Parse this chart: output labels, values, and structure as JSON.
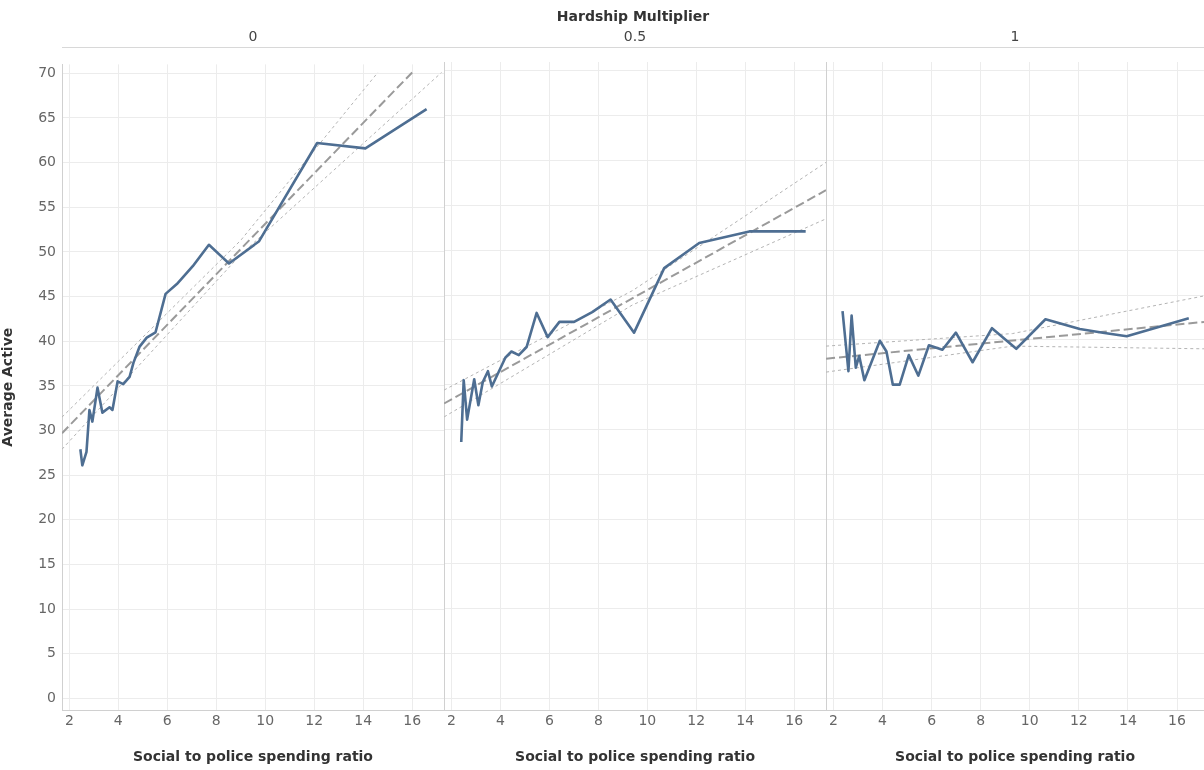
{
  "chart_data": [
    {
      "type": "line",
      "title": "0",
      "annotations": [
        "Hardship Multiplier"
      ],
      "xlabel": "Social to police spending ratio",
      "ylabel": "Average Active",
      "xlim": [
        1.7,
        17.3
      ],
      "xticks": [
        2,
        4,
        6,
        8,
        10,
        12,
        14,
        16
      ],
      "ylim": [
        -1.3,
        71
      ],
      "yticks": [
        0,
        5,
        10,
        15,
        20,
        25,
        30,
        35,
        40,
        45,
        50,
        55,
        60,
        65,
        70
      ],
      "grid": true,
      "legend": false,
      "marker": "none",
      "series": [
        {
          "color": "#4e6e92",
          "line_style": "solid",
          "x": [
            2.45,
            2.53,
            2.7,
            2.82,
            2.94,
            3.15,
            3.35,
            3.64,
            3.76,
            3.97,
            4.2,
            4.46,
            4.62,
            4.87,
            5.16,
            5.52,
            5.93,
            6.39,
            7.04,
            7.7,
            8.52,
            9.75,
            12.12,
            14.09,
            16.59
          ],
          "values": [
            27.9,
            26.1,
            27.6,
            32.3,
            31,
            34.8,
            32,
            32.6,
            32.3,
            35.5,
            35.2,
            36,
            37.6,
            39.4,
            40.4,
            41,
            45.3,
            46.4,
            48.4,
            50.8,
            48.7,
            51.2,
            62.2,
            61.6,
            66
          ]
        },
        {
          "type": "line",
          "color": "#9a9a9a",
          "line_style": "dashed",
          "x": [
            1.7,
            16
          ],
          "values": [
            29.7,
            70.1
          ]
        },
        {
          "type": "line",
          "color": "#b4b4b4",
          "line_style": "dotted",
          "x": [
            1.7,
            9,
            14.6
          ],
          "values": [
            31.5,
            51.3,
            70.1
          ]
        },
        {
          "type": "line",
          "color": "#b4b4b4",
          "line_style": "dotted",
          "x": [
            1.7,
            9,
            17.2
          ],
          "values": [
            27.9,
            49.7,
            70.1
          ]
        }
      ]
    },
    {
      "type": "line",
      "title": "0.5",
      "xlabel": "Social to police spending ratio",
      "xlim": [
        1.7,
        17.3
      ],
      "xticks": [
        2,
        4,
        6,
        8,
        10,
        12,
        14,
        16
      ],
      "ylim": [
        -1.3,
        71
      ],
      "yticks": [
        0,
        5,
        10,
        15,
        20,
        25,
        30,
        35,
        40,
        45,
        50,
        55,
        60,
        65,
        70
      ],
      "tick_labels": "x",
      "grid": true,
      "legend": false,
      "marker": "none",
      "series": [
        {
          "color": "#4e6e92",
          "line_style": "solid",
          "x": [
            2.4,
            2.5,
            2.64,
            2.93,
            3.1,
            3.28,
            3.49,
            3.65,
            4.2,
            4.45,
            4.75,
            5.07,
            5.48,
            5.93,
            6.41,
            7.01,
            7.75,
            8.5,
            9.46,
            10.69,
            12.12,
            14.17,
            16.47
          ],
          "values": [
            28.6,
            35.5,
            31.1,
            35.6,
            32.7,
            35.3,
            36.5,
            34.8,
            38,
            38.7,
            38.3,
            39.2,
            43,
            40.3,
            42,
            42,
            43.1,
            44.5,
            40.8,
            48,
            50.8,
            52.1,
            52.1
          ]
        },
        {
          "type": "line",
          "color": "#9a9a9a",
          "line_style": "dashed",
          "x": [
            1.7,
            17.3
          ],
          "values": [
            32.9,
            56.7
          ]
        },
        {
          "type": "line",
          "color": "#b4b4b4",
          "line_style": "dotted",
          "x": [
            1.7,
            9.4,
            17.3
          ],
          "values": [
            34.4,
            45.5,
            59.8
          ]
        },
        {
          "type": "line",
          "color": "#b4b4b4",
          "line_style": "dotted",
          "x": [
            1.7,
            9.4,
            17.3
          ],
          "values": [
            31.4,
            43.9,
            53.5
          ]
        }
      ]
    },
    {
      "type": "line",
      "title": "1",
      "xlabel": "Social to police spending ratio",
      "xlim": [
        1.7,
        17.1
      ],
      "xticks": [
        2,
        4,
        6,
        8,
        10,
        12,
        14,
        16
      ],
      "ylim": [
        -1.3,
        71
      ],
      "yticks": [
        0,
        5,
        10,
        15,
        20,
        25,
        30,
        35,
        40,
        45,
        50,
        55,
        60,
        65,
        70
      ],
      "tick_labels": "x",
      "grid": true,
      "legend": false,
      "marker": "none",
      "series": [
        {
          "color": "#4e6e92",
          "line_style": "solid",
          "x": [
            2.37,
            2.61,
            2.74,
            2.91,
            3.05,
            3.26,
            3.89,
            4.16,
            4.42,
            4.7,
            5.07,
            5.46,
            5.89,
            6.44,
            6.99,
            7.67,
            8.46,
            9.45,
            10.64,
            12.04,
            12.98,
            13.95,
            16.48
          ],
          "values": [
            43.2,
            36.5,
            42.7,
            36.9,
            38.2,
            35.5,
            39.9,
            38.7,
            35,
            35,
            38.3,
            36,
            39.4,
            38.9,
            40.8,
            37.5,
            41.3,
            39,
            42.3,
            41.2,
            40.8,
            40.4,
            42.4
          ]
        },
        {
          "type": "line",
          "color": "#9a9a9a",
          "line_style": "dashed",
          "x": [
            1.7,
            17.1
          ],
          "values": [
            37.9,
            42
          ]
        },
        {
          "type": "line",
          "color": "#b4b4b4",
          "line_style": "dotted",
          "x": [
            1.7,
            9.3,
            17.1
          ],
          "values": [
            39.3,
            40.7,
            44.9
          ]
        },
        {
          "type": "line",
          "color": "#b4b4b4",
          "line_style": "dotted",
          "x": [
            1.7,
            9.3,
            17.1
          ],
          "values": [
            36.4,
            39.3,
            39
          ]
        }
      ]
    }
  ]
}
